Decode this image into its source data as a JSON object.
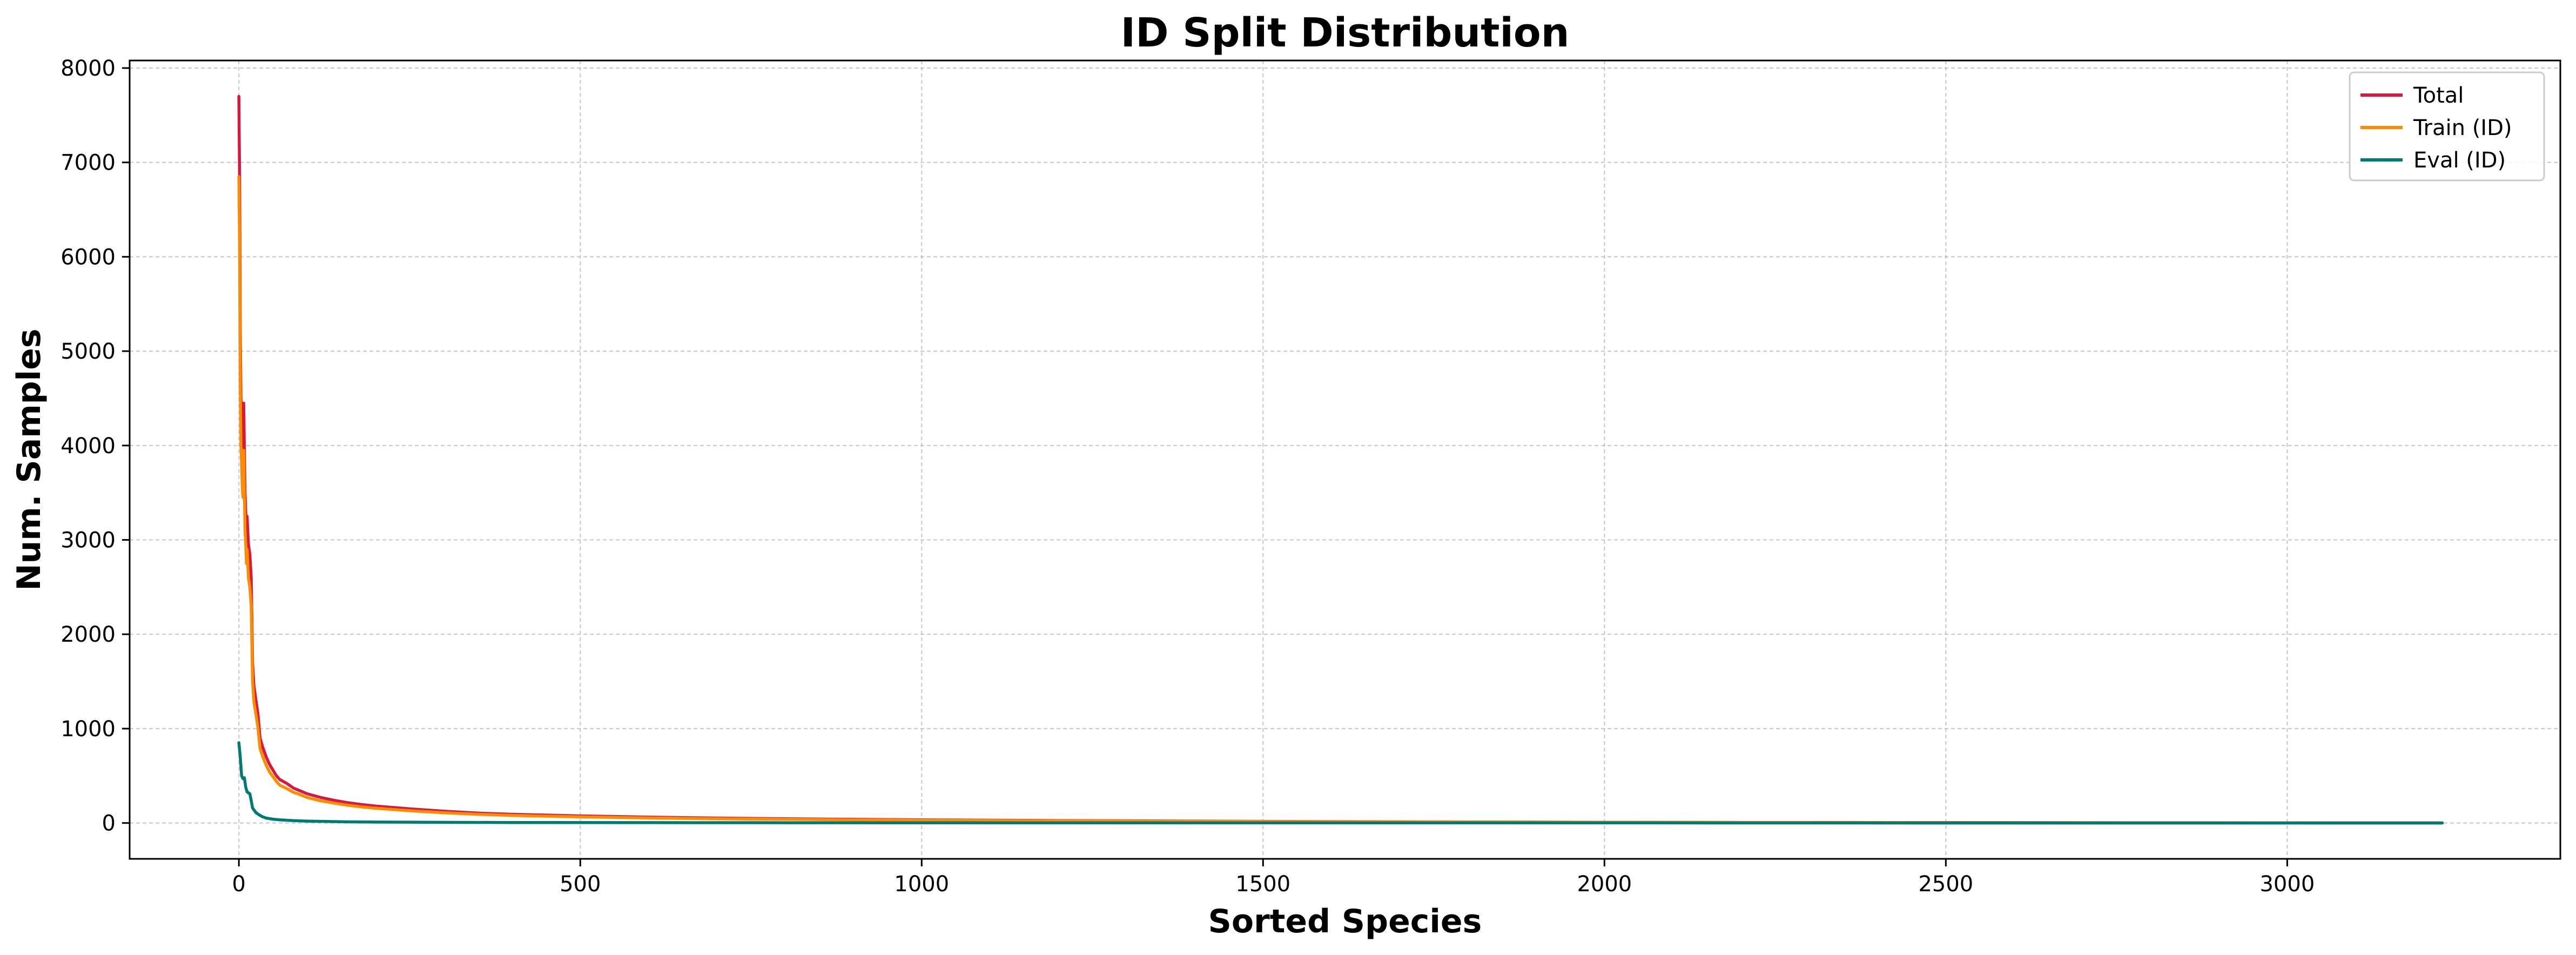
{
  "chart_data": {
    "type": "line",
    "title": "ID Split Distribution",
    "xlabel": "Sorted Species",
    "ylabel": "Num. Samples",
    "xlim": [
      -160,
      3400
    ],
    "ylim": [
      -380,
      8080
    ],
    "xticks": [
      0,
      500,
      1000,
      1500,
      2000,
      2500,
      3000
    ],
    "yticks": [
      0,
      1000,
      2000,
      3000,
      4000,
      5000,
      6000,
      7000,
      8000
    ],
    "grid": true,
    "legend_position": "top-right",
    "series": [
      {
        "name": "Total",
        "color": "#d7193f",
        "x": [
          0,
          1,
          2,
          3,
          4,
          5,
          6,
          7,
          8,
          9,
          10,
          11,
          12,
          14,
          16,
          18,
          20,
          22,
          25,
          28,
          31,
          35,
          40,
          45,
          50,
          55,
          60,
          70,
          80,
          90,
          100,
          120,
          140,
          160,
          180,
          200,
          250,
          300,
          350,
          400,
          500,
          600,
          700,
          800,
          900,
          1000,
          1200,
          1400,
          1600,
          1800,
          2000,
          2200,
          2400,
          2600,
          2800,
          3000,
          3227
        ],
        "y": [
          7700,
          6850,
          5200,
          4500,
          4300,
          4000,
          3900,
          4450,
          3950,
          3500,
          3300,
          3100,
          3250,
          2950,
          2850,
          2600,
          1700,
          1450,
          1300,
          1150,
          900,
          800,
          700,
          620,
          560,
          500,
          460,
          420,
          370,
          340,
          310,
          270,
          240,
          215,
          195,
          180,
          150,
          125,
          105,
          92,
          75,
          62,
          52,
          45,
          39,
          34,
          26,
          20,
          15,
          11,
          8,
          6,
          5,
          4,
          3,
          2,
          1
        ]
      },
      {
        "name": "Train (ID)",
        "color": "#ff8c00",
        "x": [
          0,
          1,
          2,
          3,
          4,
          5,
          6,
          7,
          8,
          9,
          10,
          11,
          12,
          14,
          16,
          18,
          20,
          22,
          25,
          28,
          31,
          35,
          40,
          45,
          50,
          55,
          60,
          70,
          80,
          90,
          100,
          120,
          140,
          160,
          180,
          200,
          250,
          300,
          350,
          400,
          500,
          600,
          700,
          800,
          900,
          1000,
          1200,
          1400,
          1600,
          1800,
          2000,
          2200,
          2400,
          2600,
          2800,
          3000,
          3227
        ],
        "y": [
          6850,
          6100,
          4600,
          4000,
          3800,
          3550,
          3450,
          3950,
          3500,
          3100,
          2950,
          2750,
          2900,
          2600,
          2500,
          2300,
          1500,
          1280,
          1150,
          1010,
          790,
          700,
          610,
          540,
          490,
          440,
          400,
          365,
          325,
          300,
          270,
          235,
          210,
          188,
          170,
          157,
          130,
          109,
          92,
          80,
          65,
          54,
          45,
          39,
          34,
          30,
          23,
          17,
          13,
          10,
          7,
          5,
          4,
          3,
          2,
          2,
          1
        ]
      },
      {
        "name": "Eval (ID)",
        "color": "#007a73",
        "x": [
          0,
          2,
          4,
          6,
          8,
          10,
          12,
          14,
          16,
          18,
          20,
          25,
          30,
          35,
          40,
          50,
          60,
          80,
          100,
          150,
          200,
          300,
          400,
          600,
          800,
          1000,
          1500,
          2000,
          2500,
          3000,
          3227
        ],
        "y": [
          850,
          700,
          500,
          470,
          480,
          380,
          330,
          320,
          310,
          240,
          160,
          110,
          85,
          65,
          52,
          40,
          33,
          25,
          20,
          13,
          10,
          7,
          5,
          4,
          3,
          2,
          1,
          1,
          0,
          0,
          0
        ]
      }
    ]
  }
}
